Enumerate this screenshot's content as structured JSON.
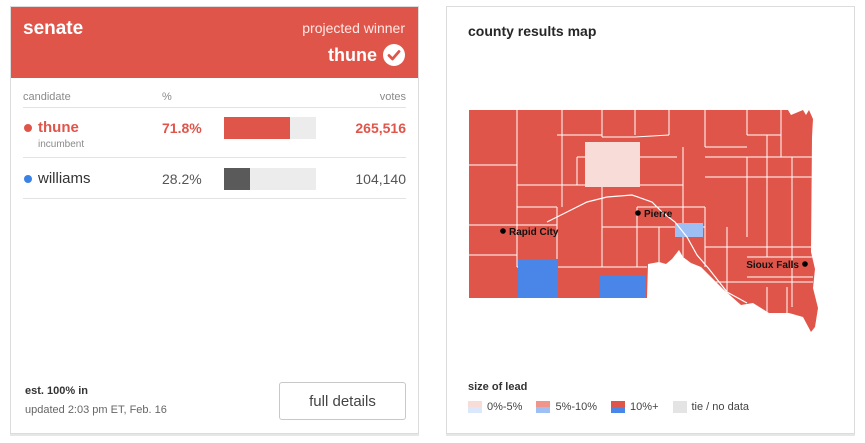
{
  "race": {
    "title": "senate",
    "projected_label": "projected winner",
    "winner": "thune",
    "colors": {
      "republican": "#e0554a",
      "democrat": "#3b82e6",
      "loser_bar": "#5a5a5a"
    }
  },
  "table": {
    "col_candidate": "candidate",
    "col_pct": "%",
    "col_votes": "votes",
    "rows": [
      {
        "name": "thune",
        "note": "incumbent",
        "pct": "71.8%",
        "share": 0.718,
        "votes": "265,516"
      },
      {
        "name": "williams",
        "note": "",
        "pct": "28.2%",
        "share": 0.282,
        "votes": "104,140"
      }
    ]
  },
  "footer": {
    "est_in": "est. 100% in",
    "updated": "updated 2:03 pm ET, Feb. 16",
    "details_label": "full details"
  },
  "map": {
    "title": "county results map",
    "cities": [
      "Rapid City",
      "Pierre",
      "Sioux Falls"
    ],
    "legend_title": "size of lead",
    "legend": [
      "0%-5%",
      "5%-10%",
      "10%+",
      "tie / no data"
    ],
    "legend_colors": {
      "r_low": "#f8dcd7",
      "d_low": "#dbe7fb",
      "r_mid": "#ef958b",
      "d_mid": "#9dbff4",
      "r_high": "#e0554a",
      "d_high": "#4a86e8",
      "none": "#e4e4e4"
    }
  }
}
